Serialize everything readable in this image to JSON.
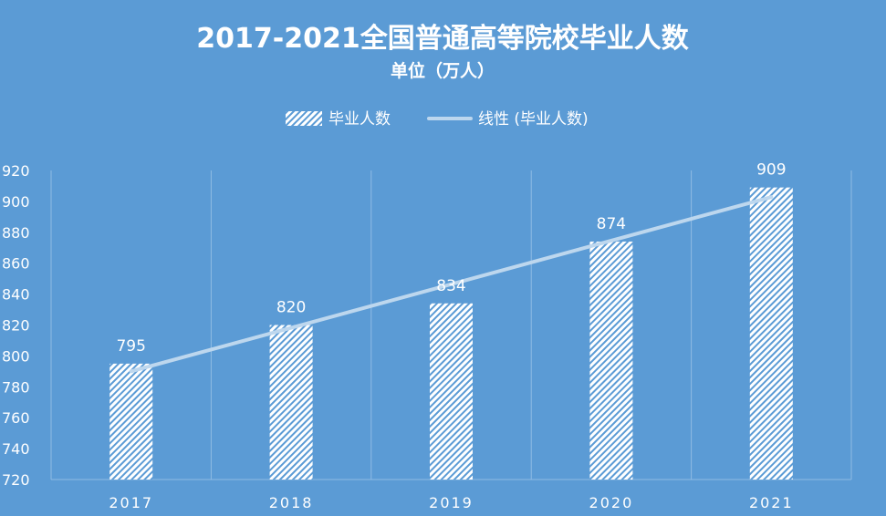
{
  "chart_data": {
    "type": "bar",
    "title": "2017-2021全国普通高等院校毕业人数",
    "subtitle": "单位（万人）",
    "categories": [
      "2017",
      "2018",
      "2019",
      "2020",
      "2021"
    ],
    "series": [
      {
        "name": "毕业人数",
        "values": [
          795,
          820,
          834,
          874,
          909
        ]
      }
    ],
    "trendline": {
      "label": "线性 (毕业人数)",
      "type": "linear"
    },
    "yticks": [
      "720",
      "740",
      "760",
      "780",
      "800",
      "820",
      "840",
      "860",
      "880",
      "900",
      "920"
    ],
    "ylim": [
      720,
      920
    ],
    "grid": "vertical",
    "legend_position": "top",
    "colors": {
      "background": "#5b9bd5",
      "bar_fill": "#ffffff",
      "trendline": "#bdd7ee",
      "gridline": "#8fbbe4",
      "text": "#ffffff"
    }
  }
}
